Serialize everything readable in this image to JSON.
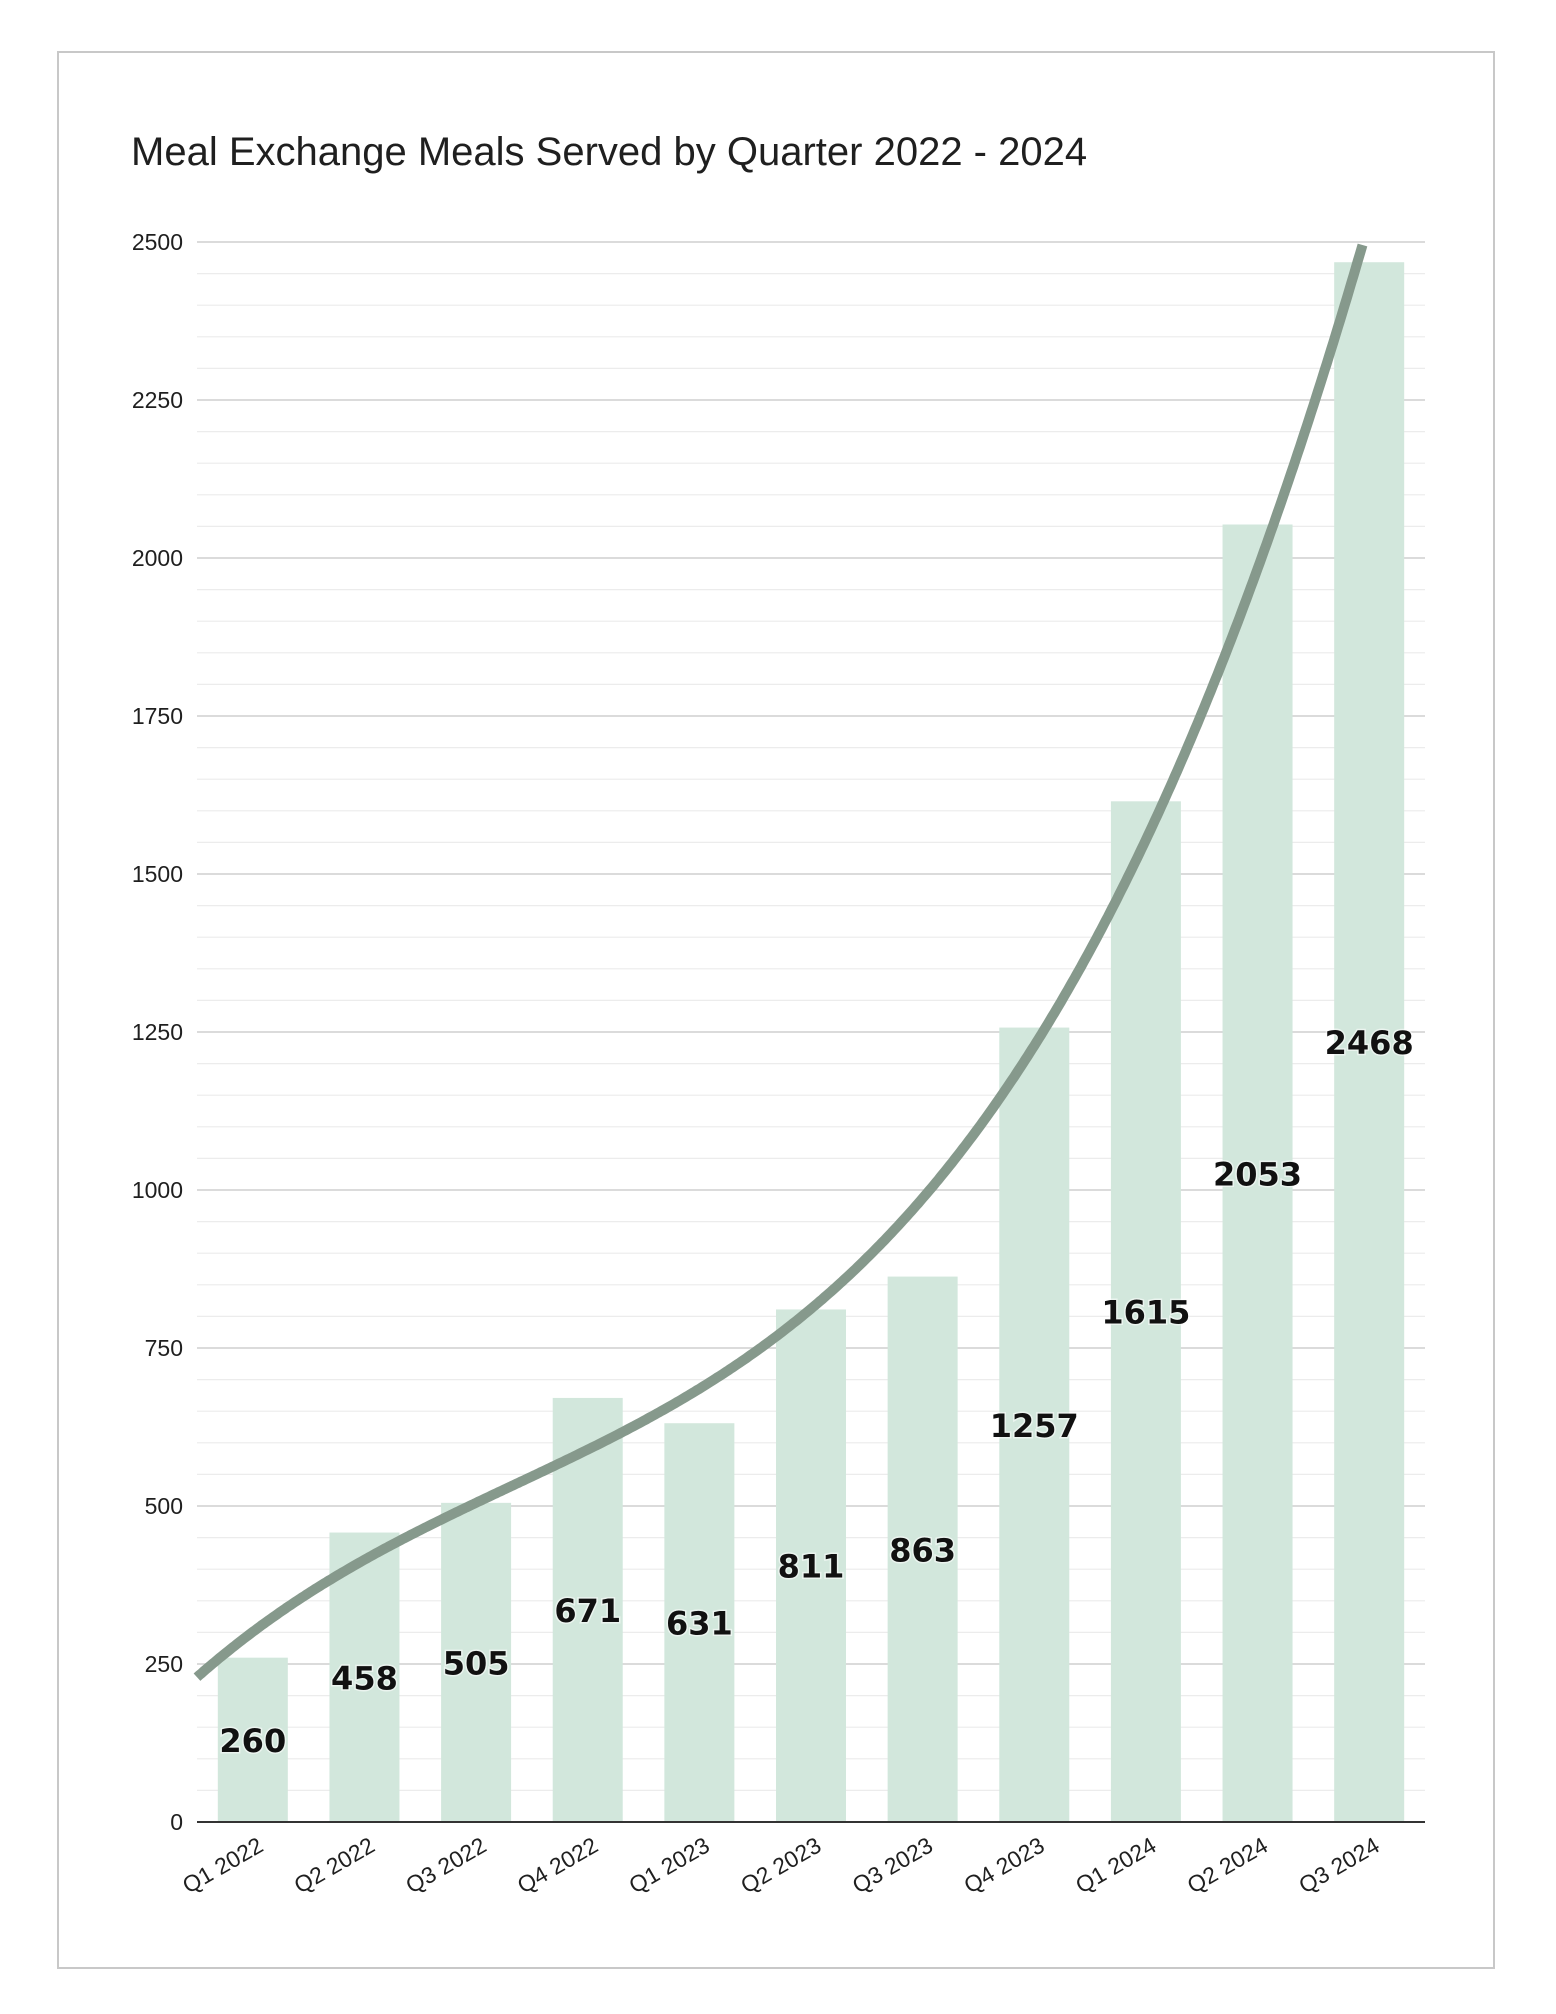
{
  "chart_data": {
    "type": "bar",
    "title": "Meal Exchange Meals Served by Quarter 2022 - 2024",
    "xlabel": "",
    "ylabel": "",
    "categories": [
      "Q1 2022",
      "Q2 2022",
      "Q3 2022",
      "Q4 2022",
      "Q1 2023",
      "Q2 2023",
      "Q3 2023",
      "Q4 2023",
      "Q1 2024",
      "Q2 2024",
      "Q3 2024"
    ],
    "series": [
      {
        "values": [
          260,
          458,
          505,
          671,
          631,
          811,
          863,
          1257,
          1615,
          2053,
          2468
        ],
        "color": "#d2e7dc",
        "data_labels": [
          "260",
          "458",
          "505",
          "671",
          "631",
          "811",
          "863",
          "1257",
          "1615",
          "2053",
          "2468"
        ]
      }
    ],
    "trendline": {
      "type": "polynomial",
      "color": "#86998c"
    },
    "ylim": [
      0,
      2500
    ],
    "yticks": [
      "0",
      "250",
      "500",
      "750",
      "1000",
      "1250",
      "1500",
      "1750",
      "2000",
      "2250",
      "2500"
    ],
    "grid": true,
    "legend": "none"
  }
}
